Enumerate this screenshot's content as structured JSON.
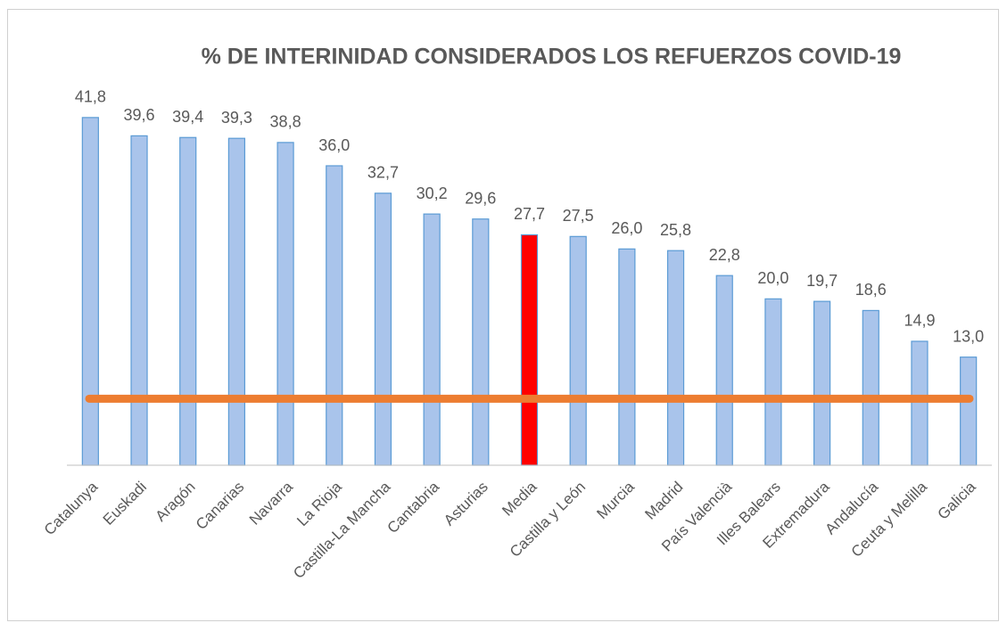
{
  "chart_data": {
    "type": "bar",
    "title": "% DE INTERINIDAD CONSIDERADOS LOS REFUERZOS COVID-19",
    "categories": [
      "Catalunya",
      "Euskadi",
      "Aragón",
      "Canarias",
      "Navarra",
      "La Rioja",
      "Castilla-La Mancha",
      "Cantabria",
      "Asturias",
      "Media",
      "Castilla y León",
      "Murcia",
      "Madrid",
      "País Valencià",
      "Illes Balears",
      "Extremadura",
      "Andalucía",
      "Ceuta y Melilla",
      "Galicia"
    ],
    "values": [
      41.8,
      39.6,
      39.4,
      39.3,
      38.8,
      36.0,
      32.7,
      30.2,
      29.6,
      27.7,
      27.5,
      26.0,
      25.8,
      22.8,
      20.0,
      19.7,
      18.6,
      14.9,
      13.0
    ],
    "value_labels": [
      "41,8",
      "39,6",
      "39,4",
      "39,3",
      "38,8",
      "36,0",
      "32,7",
      "30,2",
      "29,6",
      "27,7",
      "27,5",
      "26,0",
      "25,8",
      "22,8",
      "20,0",
      "19,7",
      "18,6",
      "14,9",
      "13,0"
    ],
    "colors": [
      "#a9c4eb",
      "#a9c4eb",
      "#a9c4eb",
      "#a9c4eb",
      "#a9c4eb",
      "#a9c4eb",
      "#a9c4eb",
      "#a9c4eb",
      "#a9c4eb",
      "#ff0000",
      "#a9c4eb",
      "#a9c4eb",
      "#a9c4eb",
      "#a9c4eb",
      "#a9c4eb",
      "#a9c4eb",
      "#a9c4eb",
      "#a9c4eb",
      "#a9c4eb"
    ],
    "edge_color": "#5b9bd5",
    "reference_line": {
      "value": 8,
      "color": "#ed7d31"
    },
    "ylim": [
      0,
      45
    ]
  }
}
